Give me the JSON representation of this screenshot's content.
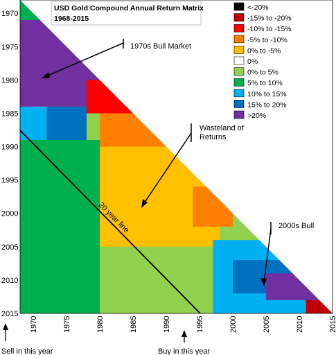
{
  "chart_data": {
    "type": "heatmap",
    "title": "USD Gold Compound Annual Return Matrix",
    "subtitle": "1968-2015",
    "xlabel": "Buy in this year",
    "ylabel": "Sell in this year",
    "x_range": [
      1968,
      2015
    ],
    "y_range": [
      1968,
      2015
    ],
    "x_ticks": [
      "1970",
      "1975",
      "1980",
      "1985",
      "1990",
      "1995",
      "2000",
      "2005",
      "2010",
      "2015"
    ],
    "y_ticks": [
      "1970",
      "1975",
      "1980",
      "1985",
      "1990",
      "1995",
      "2000",
      "2005",
      "2010",
      "2015"
    ],
    "legend": [
      {
        "label": "<-20%",
        "color": "#000000"
      },
      {
        "label": "-15% to -20%",
        "color": "#c00000"
      },
      {
        "label": "-10% to -15%",
        "color": "#ff0000"
      },
      {
        "label": "-5% to -10%",
        "color": "#ff7f00"
      },
      {
        "label": "0% to -5%",
        "color": "#ffc000"
      },
      {
        "label": "0%",
        "color": "#ffffff"
      },
      {
        "label": "0% to 5%",
        "color": "#92d050"
      },
      {
        "label": "5% to 10%",
        "color": "#00b050"
      },
      {
        "label": "10% to 15%",
        "color": "#00b0f0"
      },
      {
        "label": "15% to 20%",
        "color": "#0070c0"
      },
      {
        "label": ">20%",
        "color": "#7030a0"
      }
    ],
    "regions": [
      {
        "buy": [
          1968,
          1980
        ],
        "sell": [
          1968,
          1971
        ],
        "color": "#00b050"
      },
      {
        "buy": [
          1968,
          1980
        ],
        "sell": [
          1971,
          1984
        ],
        "color": "#7030a0"
      },
      {
        "buy": [
          1968,
          1972
        ],
        "sell": [
          1984,
          1989
        ],
        "color": "#00b0f0"
      },
      {
        "buy": [
          1972,
          1978
        ],
        "sell": [
          1984,
          1989
        ],
        "color": "#0070c0"
      },
      {
        "buy": [
          1968,
          1980
        ],
        "sell": [
          1989,
          2015
        ],
        "color": "#00b050"
      },
      {
        "buy": [
          1978,
          1985
        ],
        "sell": [
          1980,
          1985
        ],
        "color": "#ff0000"
      },
      {
        "buy": [
          1980,
          1990
        ],
        "sell": [
          1985,
          1990
        ],
        "color": "#ff7f00"
      },
      {
        "buy": [
          1980,
          1998
        ],
        "sell": [
          1990,
          2005
        ],
        "color": "#ffc000"
      },
      {
        "buy": [
          1994,
          2000
        ],
        "sell": [
          1996,
          2002
        ],
        "color": "#ff7f00"
      },
      {
        "buy": [
          1980,
          2002
        ],
        "sell": [
          2005,
          2015
        ],
        "color": "#92d050"
      },
      {
        "buy": [
          1997,
          2015
        ],
        "sell": [
          2004,
          2015
        ],
        "color": "#00b0f0"
      },
      {
        "buy": [
          2000,
          2010
        ],
        "sell": [
          2007,
          2012
        ],
        "color": "#0070c0"
      },
      {
        "buy": [
          2005,
          2015
        ],
        "sell": [
          2009,
          2013
        ],
        "color": "#7030a0"
      },
      {
        "buy": [
          2011,
          2015
        ],
        "sell": [
          2013,
          2015
        ],
        "color": "#c00000"
      }
    ]
  },
  "annotations": {
    "bull_1970s": "1970s Bull Market",
    "wasteland": "Wasteland of Returns",
    "bull_2000s": "2000s Bull",
    "twenty_year_line": "20 year line"
  },
  "axis_labels": {
    "sell": "Sell in this year",
    "buy": "Buy in this year"
  }
}
